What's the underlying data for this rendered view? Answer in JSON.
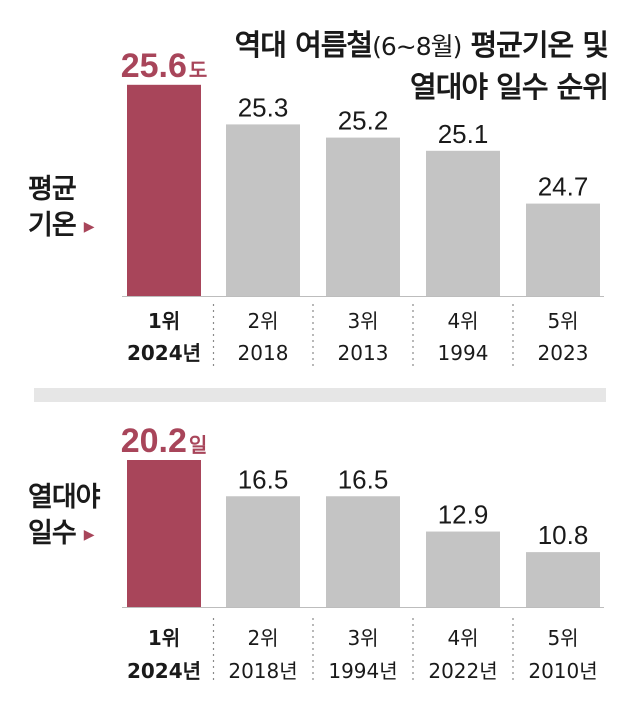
{
  "title": {
    "line1_main": "역대 여름철",
    "line1_paren": "(6~8월)",
    "line1_end": "평균기온 및",
    "line2": "열대야 일수 순위"
  },
  "colors": {
    "highlight": "#a8455a",
    "bar": "#c4c4c4",
    "text": "#1a1a1a",
    "separator": "#e6e6e6"
  },
  "chart_data": [
    {
      "type": "bar",
      "name": "avg-temperature",
      "side_label": [
        "평균",
        "기온"
      ],
      "unit": "도",
      "categories": [
        "1위",
        "2위",
        "3위",
        "4위",
        "5위"
      ],
      "years": [
        "2024년",
        "2018",
        "2013",
        "1994",
        "2023"
      ],
      "values": [
        25.6,
        25.3,
        25.2,
        25.1,
        24.7
      ],
      "highlight_index": 0
    },
    {
      "type": "bar",
      "name": "tropical-nights",
      "side_label": [
        "열대야",
        "일수"
      ],
      "unit": "일",
      "categories": [
        "1위",
        "2위",
        "3위",
        "4위",
        "5위"
      ],
      "years": [
        "2024년",
        "2018년",
        "1994년",
        "2022년",
        "2010년"
      ],
      "values": [
        20.2,
        16.5,
        16.5,
        12.9,
        10.8
      ],
      "highlight_index": 0
    }
  ]
}
